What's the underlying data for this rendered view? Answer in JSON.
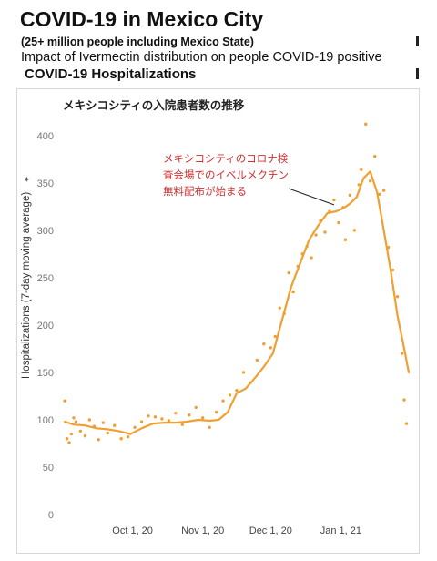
{
  "header": {
    "title": "COVID-19 in Mexico City",
    "subtitle": "(25+ million people including Mexico State)",
    "impact": "Impact of Ivermectin distribution on people COVID-19 positive",
    "section": "COVID-19 Hospitalizations"
  },
  "chart_data": {
    "type": "line",
    "title": "メキシコシティの入院患者数の推移",
    "ylabel": "Hospitalizations (7-day moving average)",
    "xlabel": "",
    "ylim": [
      0,
      420
    ],
    "yticks": [
      0,
      50,
      100,
      150,
      200,
      250,
      300,
      350,
      400
    ],
    "grid": false,
    "x_range": [
      "2020-09-01",
      "2021-01-31"
    ],
    "x_ticks": [
      {
        "date": "2020-10-01",
        "label": "Oct 1, 20"
      },
      {
        "date": "2020-11-01",
        "label": "Nov 1, 20"
      },
      {
        "date": "2020-12-01",
        "label": "Dec 1, 20"
      },
      {
        "date": "2021-01-01",
        "label": "Jan 1, 21"
      }
    ],
    "colors": {
      "line": "#f0a033",
      "points": "#f0a033",
      "annotation_text": "#d03030"
    },
    "moving_average": {
      "x": [
        "2020-09-01",
        "2020-09-05",
        "2020-09-10",
        "2020-09-15",
        "2020-09-20",
        "2020-09-25",
        "2020-09-30",
        "2020-10-05",
        "2020-10-10",
        "2020-10-15",
        "2020-10-20",
        "2020-10-25",
        "2020-10-30",
        "2020-11-04",
        "2020-11-08",
        "2020-11-12",
        "2020-11-16",
        "2020-11-20",
        "2020-11-24",
        "2020-11-28",
        "2020-12-02",
        "2020-12-06",
        "2020-12-10",
        "2020-12-14",
        "2020-12-18",
        "2020-12-22",
        "2020-12-26",
        "2020-12-30",
        "2021-01-02",
        "2021-01-05",
        "2021-01-08",
        "2021-01-11",
        "2021-01-14",
        "2021-01-17",
        "2021-01-20",
        "2021-01-23",
        "2021-01-26",
        "2021-01-29",
        "2021-01-31"
      ],
      "y": [
        98,
        95,
        94,
        91,
        90,
        88,
        85,
        91,
        96,
        97,
        97,
        98,
        100,
        99,
        100,
        108,
        128,
        133,
        144,
        156,
        170,
        205,
        240,
        265,
        290,
        305,
        318,
        320,
        323,
        328,
        335,
        355,
        362,
        340,
        300,
        258,
        210,
        175,
        150
      ]
    },
    "daily": {
      "x": [
        "2020-09-01",
        "2020-09-02",
        "2020-09-03",
        "2020-09-04",
        "2020-09-05",
        "2020-09-06",
        "2020-09-08",
        "2020-09-10",
        "2020-09-12",
        "2020-09-14",
        "2020-09-16",
        "2020-09-18",
        "2020-09-20",
        "2020-09-23",
        "2020-09-26",
        "2020-09-29",
        "2020-10-02",
        "2020-10-05",
        "2020-10-08",
        "2020-10-11",
        "2020-10-14",
        "2020-10-17",
        "2020-10-20",
        "2020-10-23",
        "2020-10-26",
        "2020-10-29",
        "2020-11-01",
        "2020-11-04",
        "2020-11-07",
        "2020-11-10",
        "2020-11-13",
        "2020-11-16",
        "2020-11-19",
        "2020-11-22",
        "2020-11-25",
        "2020-11-28",
        "2020-12-01",
        "2020-12-03",
        "2020-12-05",
        "2020-12-07",
        "2020-12-09",
        "2020-12-11",
        "2020-12-13",
        "2020-12-15",
        "2020-12-17",
        "2020-12-19",
        "2020-12-21",
        "2020-12-23",
        "2020-12-25",
        "2020-12-27",
        "2020-12-29",
        "2020-12-31",
        "2021-01-02",
        "2021-01-03",
        "2021-01-05",
        "2021-01-07",
        "2021-01-09",
        "2021-01-10",
        "2021-01-12",
        "2021-01-14",
        "2021-01-16",
        "2021-01-18",
        "2021-01-20",
        "2021-01-22",
        "2021-01-24",
        "2021-01-26",
        "2021-01-28",
        "2021-01-29",
        "2021-01-30"
      ],
      "y": [
        120,
        80,
        76,
        85,
        102,
        98,
        88,
        83,
        100,
        93,
        79,
        97,
        86,
        94,
        80,
        82,
        92,
        98,
        104,
        103,
        101,
        99,
        107,
        95,
        105,
        113,
        102,
        92,
        108,
        120,
        126,
        131,
        150,
        139,
        163,
        180,
        176,
        188,
        218,
        212,
        255,
        235,
        262,
        275,
        283,
        271,
        295,
        310,
        298,
        320,
        332,
        308,
        324,
        290,
        337,
        300,
        348,
        364,
        412,
        352,
        378,
        338,
        342,
        282,
        258,
        230,
        170,
        121,
        96
      ]
    },
    "annotation": {
      "lines": [
        "メキシコシティのコロナ検",
        "査会場でのイベルメクチン",
        "無料配布が始まる"
      ],
      "target": {
        "x": "2020-12-29",
        "y": 325
      }
    },
    "ylabel_icon": "sort-pin-icon"
  }
}
